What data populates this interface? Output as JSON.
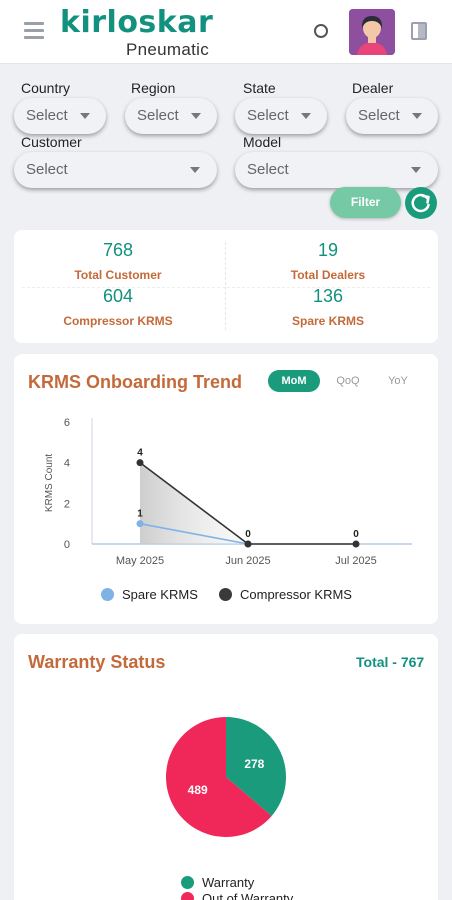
{
  "header": {
    "logo_text": "kirloskar",
    "logo_sub": "Pneumatic"
  },
  "filters": {
    "country": {
      "label": "Country",
      "value": "Select"
    },
    "region": {
      "label": "Region",
      "value": "Select"
    },
    "state": {
      "label": "State",
      "value": "Select"
    },
    "dealer": {
      "label": "Dealer",
      "value": "Select"
    },
    "customer": {
      "label": "Customer",
      "value": "Select"
    },
    "model": {
      "label": "Model",
      "value": "Select"
    },
    "filter_button": "Filter"
  },
  "stats": {
    "total_customer": {
      "value": "768",
      "label": "Total Customer"
    },
    "total_dealers": {
      "value": "19",
      "label": "Total Dealers"
    },
    "compressor_krms": {
      "value": "604",
      "label": "Compressor KRMS"
    },
    "spare_krms": {
      "value": "136",
      "label": "Spare KRMS"
    }
  },
  "trend": {
    "title": "KRMS Onboarding Trend",
    "tabs": [
      "MoM",
      "QoQ",
      "YoY"
    ],
    "active_tab": "MoM",
    "legend": [
      "Spare KRMS",
      "Compressor KRMS"
    ]
  },
  "warranty": {
    "title": "Warranty Status",
    "total": "Total - 767",
    "legend": [
      "Warranty",
      "Out of Warranty"
    ]
  },
  "colors": {
    "accent": "#1a9b7c",
    "title": "#c46a3a",
    "spare": "#7fb3e6",
    "compressor": "#333333",
    "warranty": "#1a9b7c",
    "out_of_warranty": "#f0285a"
  },
  "chart_data": [
    {
      "type": "line",
      "title": "KRMS Onboarding Trend",
      "x": [
        "May 2025",
        "Jun 2025",
        "Jul 2025"
      ],
      "ylabel": "KRMS Count",
      "ylim": [
        0,
        6
      ],
      "yticks": [
        0,
        2,
        4,
        6
      ],
      "series": [
        {
          "name": "Spare KRMS",
          "values": [
            1,
            0,
            null
          ]
        },
        {
          "name": "Compressor KRMS",
          "values": [
            4,
            0,
            0
          ]
        }
      ],
      "legend": "bottom"
    },
    {
      "type": "pie",
      "title": "Warranty Status",
      "slices": [
        {
          "name": "Warranty",
          "value": 278
        },
        {
          "name": "Out of Warranty",
          "value": 489
        }
      ],
      "legend": "bottom"
    }
  ]
}
